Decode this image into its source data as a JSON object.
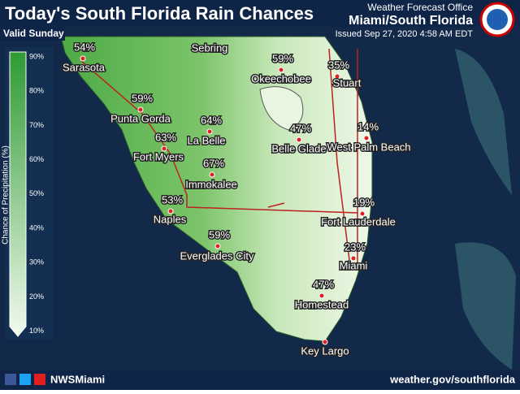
{
  "header": {
    "title": "Today's South Florida Rain Chances",
    "valid": "Valid Sunday",
    "office": "Weather Forecast Office",
    "region": "Miami/South Florida",
    "issued": "Issued Sep 27, 2020 4:58 AM EDT"
  },
  "legend": {
    "title": "Chance of Precipitation (%)",
    "labels": [
      "90%",
      "80%",
      "70%",
      "60%",
      "50%",
      "40%",
      "30%",
      "20%",
      "10%"
    ]
  },
  "cities": [
    {
      "name": "Sarasota",
      "chance": "54%"
    },
    {
      "name": "Sebring"
    },
    {
      "name": "Okeechobee",
      "chance": "59%"
    },
    {
      "name": "Stuart",
      "chance": "35%"
    },
    {
      "name": "Punta Gorda",
      "chance": "59%"
    },
    {
      "name": "La Belle",
      "chance": "64%"
    },
    {
      "name": "Belle Glade",
      "chance": "47%"
    },
    {
      "name": "West Palm Beach",
      "chance": "14%"
    },
    {
      "name": "Fort Myers",
      "chance": "63%"
    },
    {
      "name": "Immokalee",
      "chance": "67%"
    },
    {
      "name": "Naples",
      "chance": "53%"
    },
    {
      "name": "Fort Lauderdale",
      "chance": "19%"
    },
    {
      "name": "Everglades City",
      "chance": "59%"
    },
    {
      "name": "Miami",
      "chance": "23%"
    },
    {
      "name": "Homestead",
      "chance": "47%"
    },
    {
      "name": "Key Largo"
    }
  ],
  "footer": {
    "handle": "NWSMiami",
    "url": "weather.gov/southflorida"
  }
}
